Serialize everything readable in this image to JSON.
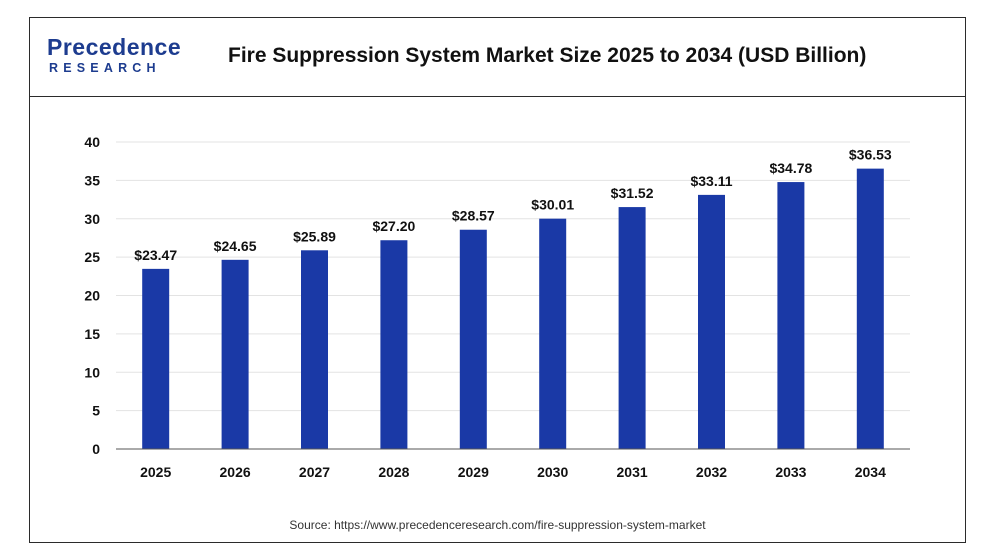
{
  "header": {
    "logo_main": "Precedence",
    "logo_sub": "RESEARCH",
    "title": "Fire Suppression System Market Size 2025 to 2034 (USD Billion)"
  },
  "footer": {
    "source": "Source: https://www.precedenceresearch.com/fire-suppression-system-market"
  },
  "colors": {
    "bar": "#1a39a6",
    "grid": "#e3e3e3",
    "axis": "#555555",
    "text": "#111111"
  },
  "chart_data": {
    "type": "bar",
    "title": "Fire Suppression System Market Size 2025 to 2034 (USD Billion)",
    "categories": [
      "2025",
      "2026",
      "2027",
      "2028",
      "2029",
      "2030",
      "2031",
      "2032",
      "2033",
      "2034"
    ],
    "values": [
      23.47,
      24.65,
      25.89,
      27.2,
      28.57,
      30.01,
      31.52,
      33.11,
      34.78,
      36.53
    ],
    "data_labels": [
      "$23.47",
      "$24.65",
      "$25.89",
      "$27.20",
      "$28.57",
      "$30.01",
      "$31.52",
      "$33.11",
      "$34.78",
      "$36.53"
    ],
    "yticks": [
      0,
      5,
      10,
      15,
      20,
      25,
      30,
      35,
      40
    ],
    "ylim": [
      0,
      40
    ],
    "grid": true,
    "legend": "none"
  }
}
